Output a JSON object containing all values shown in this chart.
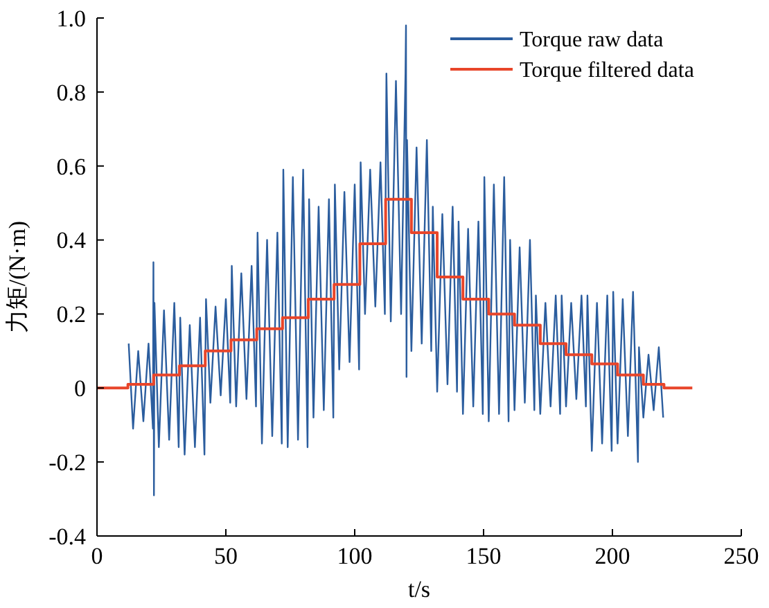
{
  "chart_data": {
    "type": "line",
    "xlabel": "t/s",
    "ylabel": "力矩/(N·m)",
    "xlim": [
      0,
      250
    ],
    "ylim": [
      -0.4,
      1
    ],
    "xticks": [
      0,
      50,
      100,
      150,
      200,
      250
    ],
    "yticks": [
      -0.4,
      -0.2,
      0,
      0.2,
      0.4,
      0.6,
      0.8,
      {
        "value": 1,
        "label": "1.0"
      }
    ],
    "legend": "top right",
    "grid": false,
    "marker": "none",
    "line_style": "solid",
    "series": [
      {
        "name": "Torque raw data",
        "color": "#2b5d9e",
        "x": [
          12.3,
          14,
          16,
          18,
          20,
          21.7,
          21.9,
          22.1,
          22.3,
          24,
          26,
          28,
          30,
          31.7,
          32.3,
          34,
          36,
          38,
          40,
          41.7,
          42.3,
          44,
          46,
          48,
          50,
          51.7,
          52.3,
          54,
          56,
          58,
          60,
          61.7,
          62.3,
          64,
          66,
          68,
          70,
          71.7,
          72.3,
          74,
          76,
          78,
          80,
          81.7,
          82.3,
          84,
          86,
          88,
          90,
          91.7,
          92.3,
          94,
          96,
          98,
          100,
          101.7,
          102.3,
          104,
          106,
          108,
          110,
          111.7,
          112.3,
          114,
          116,
          118,
          119.7,
          119.9,
          120.1,
          120.3,
          122,
          124,
          126,
          128,
          129.7,
          130.3,
          132,
          134,
          136,
          138,
          139.7,
          140.3,
          142,
          144,
          146,
          148,
          149.7,
          150.3,
          152,
          154,
          156,
          158,
          159.7,
          160.3,
          162,
          164,
          166,
          168,
          169.7,
          170.3,
          172,
          174,
          176,
          178,
          179.7,
          180.3,
          182,
          184,
          186,
          188,
          189.7,
          190.3,
          192,
          194,
          196,
          198,
          199.7,
          200.3,
          202,
          204,
          206,
          208,
          209.7,
          209.9,
          210.3,
          212,
          214,
          216,
          218,
          219.7
        ],
        "values": [
          0.12,
          -0.11,
          0.1,
          -0.09,
          0.12,
          -0.11,
          0.34,
          -0.29,
          0.23,
          -0.16,
          0.21,
          -0.14,
          0.23,
          -0.16,
          0.19,
          -0.18,
          0.17,
          -0.16,
          0.19,
          -0.18,
          0.24,
          -0.04,
          0.22,
          -0.02,
          0.24,
          -0.04,
          0.33,
          -0.05,
          0.31,
          -0.03,
          0.33,
          -0.05,
          0.42,
          -0.15,
          0.4,
          -0.13,
          0.42,
          -0.15,
          0.59,
          -0.16,
          0.57,
          -0.14,
          0.59,
          -0.16,
          0.51,
          -0.08,
          0.49,
          -0.06,
          0.51,
          -0.08,
          0.55,
          0.05,
          0.53,
          0.07,
          0.55,
          0.05,
          0.61,
          0.2,
          0.59,
          0.22,
          0.61,
          0.2,
          0.85,
          0.18,
          0.83,
          0.2,
          0.85,
          0.98,
          0.03,
          0.67,
          0.1,
          0.65,
          0.12,
          0.67,
          0.1,
          0.49,
          -0.01,
          0.47,
          0.01,
          0.49,
          -0.01,
          0.45,
          -0.07,
          0.43,
          -0.05,
          0.45,
          -0.07,
          0.57,
          -0.09,
          0.55,
          -0.07,
          0.57,
          -0.09,
          0.4,
          -0.06,
          0.38,
          -0.04,
          0.4,
          -0.06,
          0.25,
          -0.07,
          0.23,
          -0.05,
          0.25,
          -0.07,
          0.25,
          -0.05,
          0.23,
          -0.03,
          0.25,
          -0.05,
          0.25,
          -0.17,
          0.23,
          -0.15,
          0.25,
          -0.17,
          0.26,
          -0.15,
          0.24,
          -0.13,
          0.26,
          -0.15,
          -0.2,
          0.11,
          -0.08,
          0.09,
          -0.06,
          0.11,
          -0.08
        ]
      },
      {
        "name": "Torque filtered data",
        "color": "#e8452a",
        "x": [
          0,
          12,
          12,
          22,
          22,
          32,
          32,
          42,
          42,
          52,
          52,
          62,
          62,
          72,
          72,
          82,
          82,
          92,
          92,
          102,
          102,
          112,
          112,
          122,
          122,
          132,
          132,
          142,
          142,
          152,
          152,
          162,
          162,
          172,
          172,
          182,
          182,
          192,
          192,
          202,
          202,
          212,
          212,
          220,
          220,
          231
        ],
        "values": [
          0,
          0,
          0.01,
          0.01,
          0.035,
          0.035,
          0.06,
          0.06,
          0.1,
          0.1,
          0.13,
          0.13,
          0.16,
          0.16,
          0.19,
          0.19,
          0.24,
          0.24,
          0.28,
          0.28,
          0.39,
          0.39,
          0.51,
          0.51,
          0.42,
          0.42,
          0.3,
          0.3,
          0.24,
          0.24,
          0.2,
          0.2,
          0.17,
          0.17,
          0.12,
          0.12,
          0.09,
          0.09,
          0.065,
          0.065,
          0.035,
          0.035,
          0.01,
          0.01,
          0,
          0
        ]
      }
    ]
  }
}
